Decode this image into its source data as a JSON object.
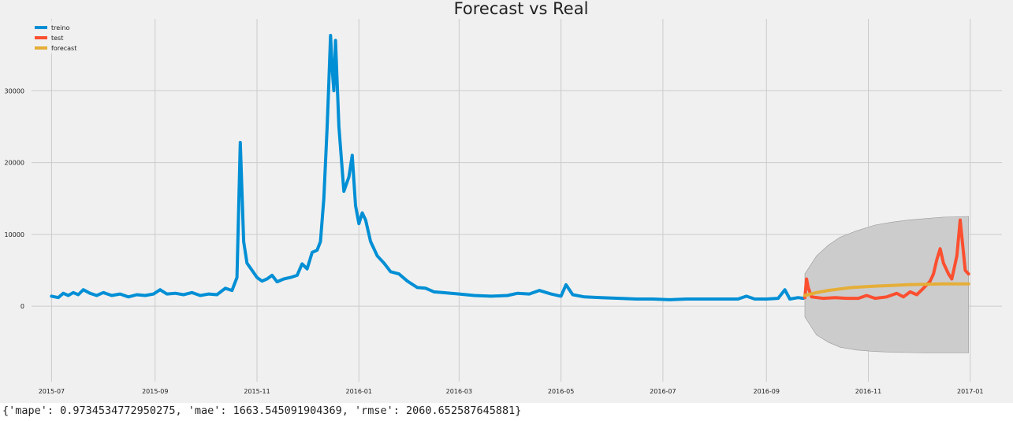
{
  "chart_data": {
    "type": "line",
    "title": "Forecast vs Real",
    "xlabel": "",
    "ylabel": "",
    "x_range": [
      "2015-06-19",
      "2017-01-20"
    ],
    "ylim": [
      -10500,
      40000
    ],
    "x_ticks": [
      "2015-07-01",
      "2015-09-01",
      "2015-11-01",
      "2016-01-01",
      "2016-03-01",
      "2016-05-01",
      "2016-07-01",
      "2016-09-01",
      "2016-11-01",
      "2017-01-01"
    ],
    "x_tick_labels": [
      "2015-07",
      "2015-09",
      "2015-11",
      "2016-01",
      "2016-03",
      "2016-05",
      "2016-07",
      "2016-09",
      "2016-11",
      "2017-01"
    ],
    "y_ticks": [
      0,
      10000,
      20000,
      30000
    ],
    "y_tick_labels": [
      "0",
      "10000",
      "20000",
      "30000"
    ],
    "grid": true,
    "legend": "top-left",
    "series": [
      {
        "name": "treino",
        "color": "#008fd5",
        "points": [
          [
            "2015-07-01",
            1400
          ],
          [
            "2015-07-05",
            1200
          ],
          [
            "2015-07-08",
            1800
          ],
          [
            "2015-07-11",
            1500
          ],
          [
            "2015-07-14",
            1900
          ],
          [
            "2015-07-17",
            1600
          ],
          [
            "2015-07-20",
            2300
          ],
          [
            "2015-07-24",
            1800
          ],
          [
            "2015-07-28",
            1500
          ],
          [
            "2015-08-01",
            1900
          ],
          [
            "2015-08-06",
            1500
          ],
          [
            "2015-08-11",
            1700
          ],
          [
            "2015-08-16",
            1300
          ],
          [
            "2015-08-21",
            1600
          ],
          [
            "2015-08-26",
            1500
          ],
          [
            "2015-08-31",
            1700
          ],
          [
            "2015-09-04",
            2300
          ],
          [
            "2015-09-08",
            1700
          ],
          [
            "2015-09-13",
            1800
          ],
          [
            "2015-09-18",
            1600
          ],
          [
            "2015-09-23",
            1900
          ],
          [
            "2015-09-28",
            1500
          ],
          [
            "2015-10-03",
            1700
          ],
          [
            "2015-10-08",
            1600
          ],
          [
            "2015-10-13",
            2500
          ],
          [
            "2015-10-17",
            2200
          ],
          [
            "2015-10-20",
            4000
          ],
          [
            "2015-10-22",
            22800
          ],
          [
            "2015-10-24",
            9000
          ],
          [
            "2015-10-26",
            6000
          ],
          [
            "2015-10-29",
            5000
          ],
          [
            "2015-11-01",
            4000
          ],
          [
            "2015-11-04",
            3500
          ],
          [
            "2015-11-07",
            3800
          ],
          [
            "2015-11-10",
            4300
          ],
          [
            "2015-11-13",
            3400
          ],
          [
            "2015-11-17",
            3800
          ],
          [
            "2015-11-21",
            4000
          ],
          [
            "2015-11-25",
            4300
          ],
          [
            "2015-11-28",
            5900
          ],
          [
            "2015-12-01",
            5200
          ],
          [
            "2015-12-04",
            7500
          ],
          [
            "2015-12-07",
            7800
          ],
          [
            "2015-12-09",
            9000
          ],
          [
            "2015-12-11",
            15000
          ],
          [
            "2015-12-13",
            25000
          ],
          [
            "2015-12-14",
            31000
          ],
          [
            "2015-12-15",
            37700
          ],
          [
            "2015-12-16",
            33000
          ],
          [
            "2015-12-17",
            30000
          ],
          [
            "2015-12-18",
            37000
          ],
          [
            "2015-12-20",
            25000
          ],
          [
            "2015-12-23",
            16000
          ],
          [
            "2015-12-26",
            18000
          ],
          [
            "2015-12-28",
            21000
          ],
          [
            "2015-12-30",
            14000
          ],
          [
            "2016-01-01",
            11500
          ],
          [
            "2016-01-03",
            13000
          ],
          [
            "2016-01-05",
            12000
          ],
          [
            "2016-01-08",
            9000
          ],
          [
            "2016-01-12",
            7000
          ],
          [
            "2016-01-16",
            6000
          ],
          [
            "2016-01-20",
            4800
          ],
          [
            "2016-01-25",
            4500
          ],
          [
            "2016-01-30",
            3500
          ],
          [
            "2016-02-05",
            2600
          ],
          [
            "2016-02-10",
            2500
          ],
          [
            "2016-02-15",
            2000
          ],
          [
            "2016-02-20",
            1900
          ],
          [
            "2016-03-01",
            1700
          ],
          [
            "2016-03-10",
            1500
          ],
          [
            "2016-03-20",
            1400
          ],
          [
            "2016-03-30",
            1500
          ],
          [
            "2016-04-05",
            1800
          ],
          [
            "2016-04-12",
            1700
          ],
          [
            "2016-04-18",
            2200
          ],
          [
            "2016-04-25",
            1700
          ],
          [
            "2016-05-01",
            1400
          ],
          [
            "2016-05-04",
            3000
          ],
          [
            "2016-05-08",
            1600
          ],
          [
            "2016-05-15",
            1300
          ],
          [
            "2016-05-25",
            1200
          ],
          [
            "2016-06-05",
            1100
          ],
          [
            "2016-06-15",
            1000
          ],
          [
            "2016-06-25",
            1000
          ],
          [
            "2016-07-05",
            900
          ],
          [
            "2016-07-15",
            1000
          ],
          [
            "2016-07-25",
            1000
          ],
          [
            "2016-08-05",
            1000
          ],
          [
            "2016-08-15",
            1000
          ],
          [
            "2016-08-20",
            1400
          ],
          [
            "2016-08-25",
            1000
          ],
          [
            "2016-09-01",
            1000
          ],
          [
            "2016-09-08",
            1100
          ],
          [
            "2016-09-12",
            2300
          ],
          [
            "2016-09-15",
            1000
          ],
          [
            "2016-09-20",
            1200
          ],
          [
            "2016-09-23",
            1100
          ]
        ]
      },
      {
        "name": "test",
        "color": "#fc4f30",
        "points": [
          [
            "2016-09-24",
            1200
          ],
          [
            "2016-09-25",
            3800
          ],
          [
            "2016-09-26",
            2600
          ],
          [
            "2016-09-28",
            1300
          ],
          [
            "2016-10-05",
            1100
          ],
          [
            "2016-10-12",
            1200
          ],
          [
            "2016-10-19",
            1100
          ],
          [
            "2016-10-26",
            1100
          ],
          [
            "2016-10-31",
            1500
          ],
          [
            "2016-11-05",
            1100
          ],
          [
            "2016-11-12",
            1300
          ],
          [
            "2016-11-18",
            1800
          ],
          [
            "2016-11-22",
            1300
          ],
          [
            "2016-11-26",
            2000
          ],
          [
            "2016-11-30",
            1600
          ],
          [
            "2016-12-04",
            2500
          ],
          [
            "2016-12-08",
            3500
          ],
          [
            "2016-12-10",
            4500
          ],
          [
            "2016-12-12",
            6500
          ],
          [
            "2016-12-14",
            8000
          ],
          [
            "2016-12-16",
            6000
          ],
          [
            "2016-12-19",
            4500
          ],
          [
            "2016-12-21",
            3800
          ],
          [
            "2016-12-24",
            7000
          ],
          [
            "2016-12-26",
            12000
          ],
          [
            "2016-12-29",
            5000
          ],
          [
            "2016-12-31",
            4500
          ]
        ]
      },
      {
        "name": "forecast",
        "color": "#e5ae38",
        "points": [
          [
            "2016-09-24",
            1500
          ],
          [
            "2016-10-01",
            1900
          ],
          [
            "2016-10-08",
            2200
          ],
          [
            "2016-10-15",
            2400
          ],
          [
            "2016-10-22",
            2600
          ],
          [
            "2016-10-29",
            2700
          ],
          [
            "2016-11-05",
            2800
          ],
          [
            "2016-11-15",
            2900
          ],
          [
            "2016-11-25",
            3000
          ],
          [
            "2016-12-05",
            3050
          ],
          [
            "2016-12-15",
            3100
          ],
          [
            "2016-12-31",
            3100
          ]
        ]
      }
    ],
    "confidence_band": {
      "color": "#cccccc",
      "upper": [
        [
          "2016-09-24",
          4500
        ],
        [
          "2016-10-01",
          7000
        ],
        [
          "2016-10-08",
          8500
        ],
        [
          "2016-10-15",
          9600
        ],
        [
          "2016-10-25",
          10500
        ],
        [
          "2016-11-05",
          11300
        ],
        [
          "2016-11-15",
          11700
        ],
        [
          "2016-11-25",
          12000
        ],
        [
          "2016-12-05",
          12200
        ],
        [
          "2016-12-15",
          12400
        ],
        [
          "2016-12-31",
          12500
        ]
      ],
      "lower": [
        [
          "2016-09-24",
          -1500
        ],
        [
          "2016-10-01",
          -4000
        ],
        [
          "2016-10-08",
          -5000
        ],
        [
          "2016-10-15",
          -5700
        ],
        [
          "2016-10-25",
          -6100
        ],
        [
          "2016-11-05",
          -6300
        ],
        [
          "2016-11-15",
          -6400
        ],
        [
          "2016-11-25",
          -6450
        ],
        [
          "2016-12-05",
          -6500
        ],
        [
          "2016-12-15",
          -6500
        ],
        [
          "2016-12-31",
          -6500
        ]
      ]
    }
  },
  "metrics_text": "{'mape': 0.9734534772950275, 'mae': 1663.545091904369, 'rmse': 2060.652587645881}"
}
